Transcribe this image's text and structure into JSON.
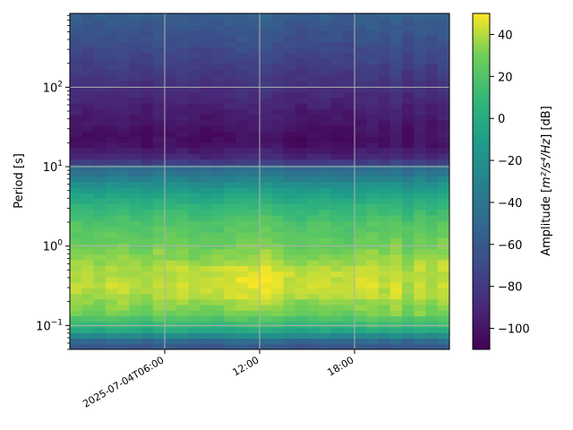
{
  "chart_data": {
    "type": "heatmap",
    "title": "",
    "xlabel": "",
    "ylabel": "Period [s]",
    "colorbar_label_prefix": "Amplitude [",
    "colorbar_label_math": "m²/s⁴/Hz",
    "colorbar_label_suffix": "] [dB]",
    "colormap": "viridis",
    "x_axis": {
      "type": "datetime",
      "start": "2025-07-04T00:00",
      "end": "2025-07-05T00:00",
      "ticks": [
        {
          "time": "2025-07-04T06:00",
          "label": "2025-07-04T06:00"
        },
        {
          "time": "2025-07-04T12:00",
          "label": "12:00"
        },
        {
          "time": "2025-07-04T18:00",
          "label": "18:00"
        }
      ]
    },
    "y_axis": {
      "scale": "log",
      "range": [
        0.05,
        850
      ],
      "ticks": [
        {
          "value": 0.1,
          "base": "10",
          "exp": "−1"
        },
        {
          "value": 1,
          "base": "10",
          "exp": "0"
        },
        {
          "value": 10,
          "base": "10",
          "exp": "1"
        },
        {
          "value": 100,
          "base": "10",
          "exp": "2"
        }
      ]
    },
    "colorbar": {
      "range": [
        -110,
        50
      ],
      "ticks": [
        {
          "value": 40,
          "label": "40"
        },
        {
          "value": 20,
          "label": "20"
        },
        {
          "value": 0,
          "label": "0"
        },
        {
          "value": -20,
          "label": "−20"
        },
        {
          "value": -40,
          "label": "−40"
        },
        {
          "value": -60,
          "label": "−60"
        },
        {
          "value": -80,
          "label": "−80"
        },
        {
          "value": -100,
          "label": "−100"
        }
      ]
    },
    "grid": true,
    "time_bins_hours": 0.75,
    "period_profile": [
      {
        "period": 0.05,
        "db": -65
      },
      {
        "period": 0.06,
        "db": -55
      },
      {
        "period": 0.07,
        "db": -38
      },
      {
        "period": 0.08,
        "db": -10
      },
      {
        "period": 0.1,
        "db": 10
      },
      {
        "period": 0.15,
        "db": 32
      },
      {
        "period": 0.3,
        "db": 42
      },
      {
        "period": 0.6,
        "db": 38
      },
      {
        "period": 1.0,
        "db": 30
      },
      {
        "period": 2.0,
        "db": 20
      },
      {
        "period": 3.0,
        "db": 10
      },
      {
        "period": 5.0,
        "db": -10
      },
      {
        "period": 7.0,
        "db": -30
      },
      {
        "period": 10.0,
        "db": -50
      },
      {
        "period": 12.0,
        "db": -85
      },
      {
        "period": 20.0,
        "db": -103
      },
      {
        "period": 30.0,
        "db": -100
      },
      {
        "period": 60.0,
        "db": -92
      },
      {
        "period": 100.0,
        "db": -85
      },
      {
        "period": 200.0,
        "db": -75
      },
      {
        "period": 400.0,
        "db": -65
      },
      {
        "period": 850.0,
        "db": -55
      }
    ]
  }
}
